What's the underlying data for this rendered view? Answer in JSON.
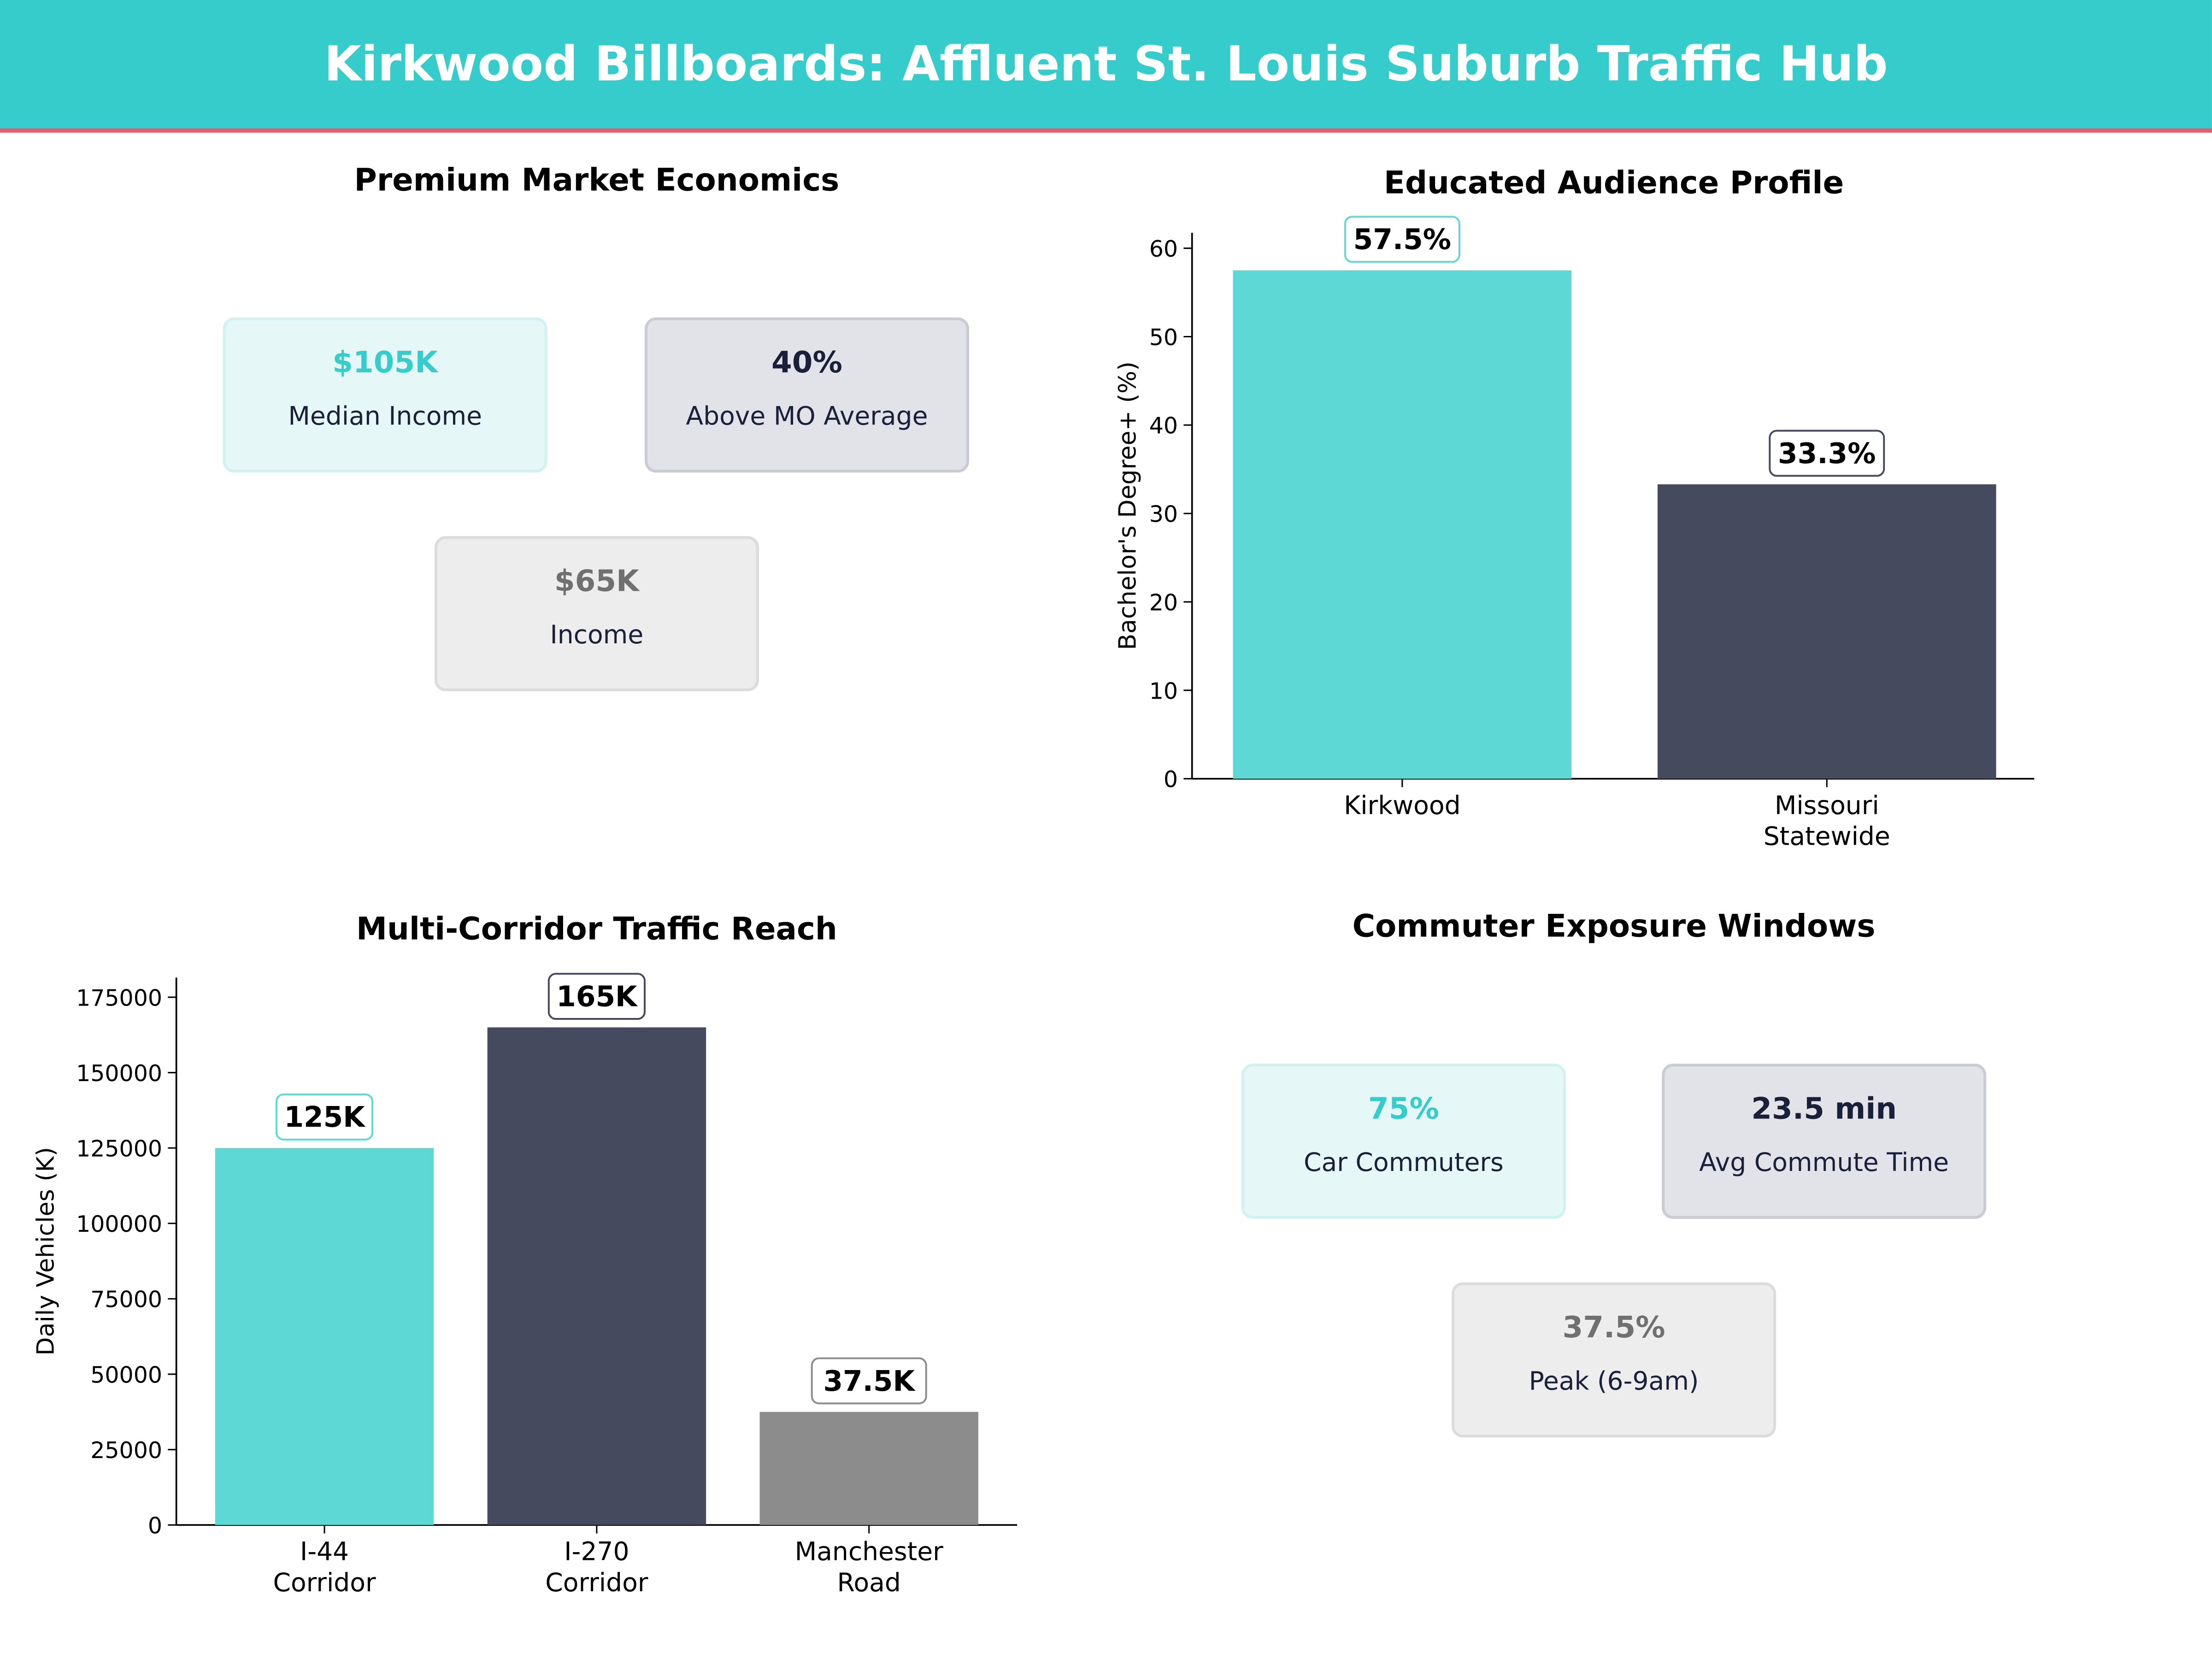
{
  "title": "Kirkwood Billboards: Affluent St. Louis Suburb Traffic Hub",
  "colors": {
    "header": "#36cccc",
    "accent_line": "#e85a6e",
    "teal": "#5dd8d5",
    "navy": "#454a5f",
    "gray": "#8c8c8c"
  },
  "panels": {
    "economics": {
      "title": "Premium Market Economics",
      "cards": [
        {
          "value": "$105K",
          "label": "Median Income"
        },
        {
          "value": "40%",
          "label": "Above MO Average"
        },
        {
          "value": "$65K",
          "label": "Income"
        }
      ]
    },
    "commuter": {
      "title": "Commuter Exposure Windows",
      "cards": [
        {
          "value": "75%",
          "label": "Car Commuters"
        },
        {
          "value": "23.5 min",
          "label": "Avg Commute Time"
        },
        {
          "value": "37.5%",
          "label": "Peak (6-9am)"
        }
      ]
    }
  },
  "chart_data": [
    {
      "type": "bar",
      "title": "Educated Audience Profile",
      "categories": [
        "Kirkwood",
        "Missouri\nStatewide"
      ],
      "values": [
        57.5,
        33.3
      ],
      "data_labels": [
        "57.5%",
        "33.3%"
      ],
      "colors": [
        "#5dd8d5",
        "#454a5f"
      ],
      "xlabel": "",
      "ylabel": "Bachelor's Degree+ (%)",
      "ylim": [
        0,
        61.75
      ],
      "yticks": [
        0,
        10,
        20,
        30,
        40,
        50,
        60
      ],
      "grid": false
    },
    {
      "type": "bar",
      "title": "Multi-Corridor Traffic Reach",
      "categories": [
        "I-44\nCorridor",
        "I-270\nCorridor",
        "Manchester\nRoad"
      ],
      "values": [
        125000,
        165000,
        37500
      ],
      "data_labels": [
        "125K",
        "165K",
        "37.5K"
      ],
      "colors": [
        "#5dd8d5",
        "#454a5f",
        "#8c8c8c"
      ],
      "xlabel": "",
      "ylabel": "Daily Vehicles (K)",
      "ylim": [
        0,
        181500
      ],
      "yticks": [
        0,
        25000,
        50000,
        75000,
        100000,
        125000,
        150000,
        175000
      ],
      "grid": false
    }
  ]
}
